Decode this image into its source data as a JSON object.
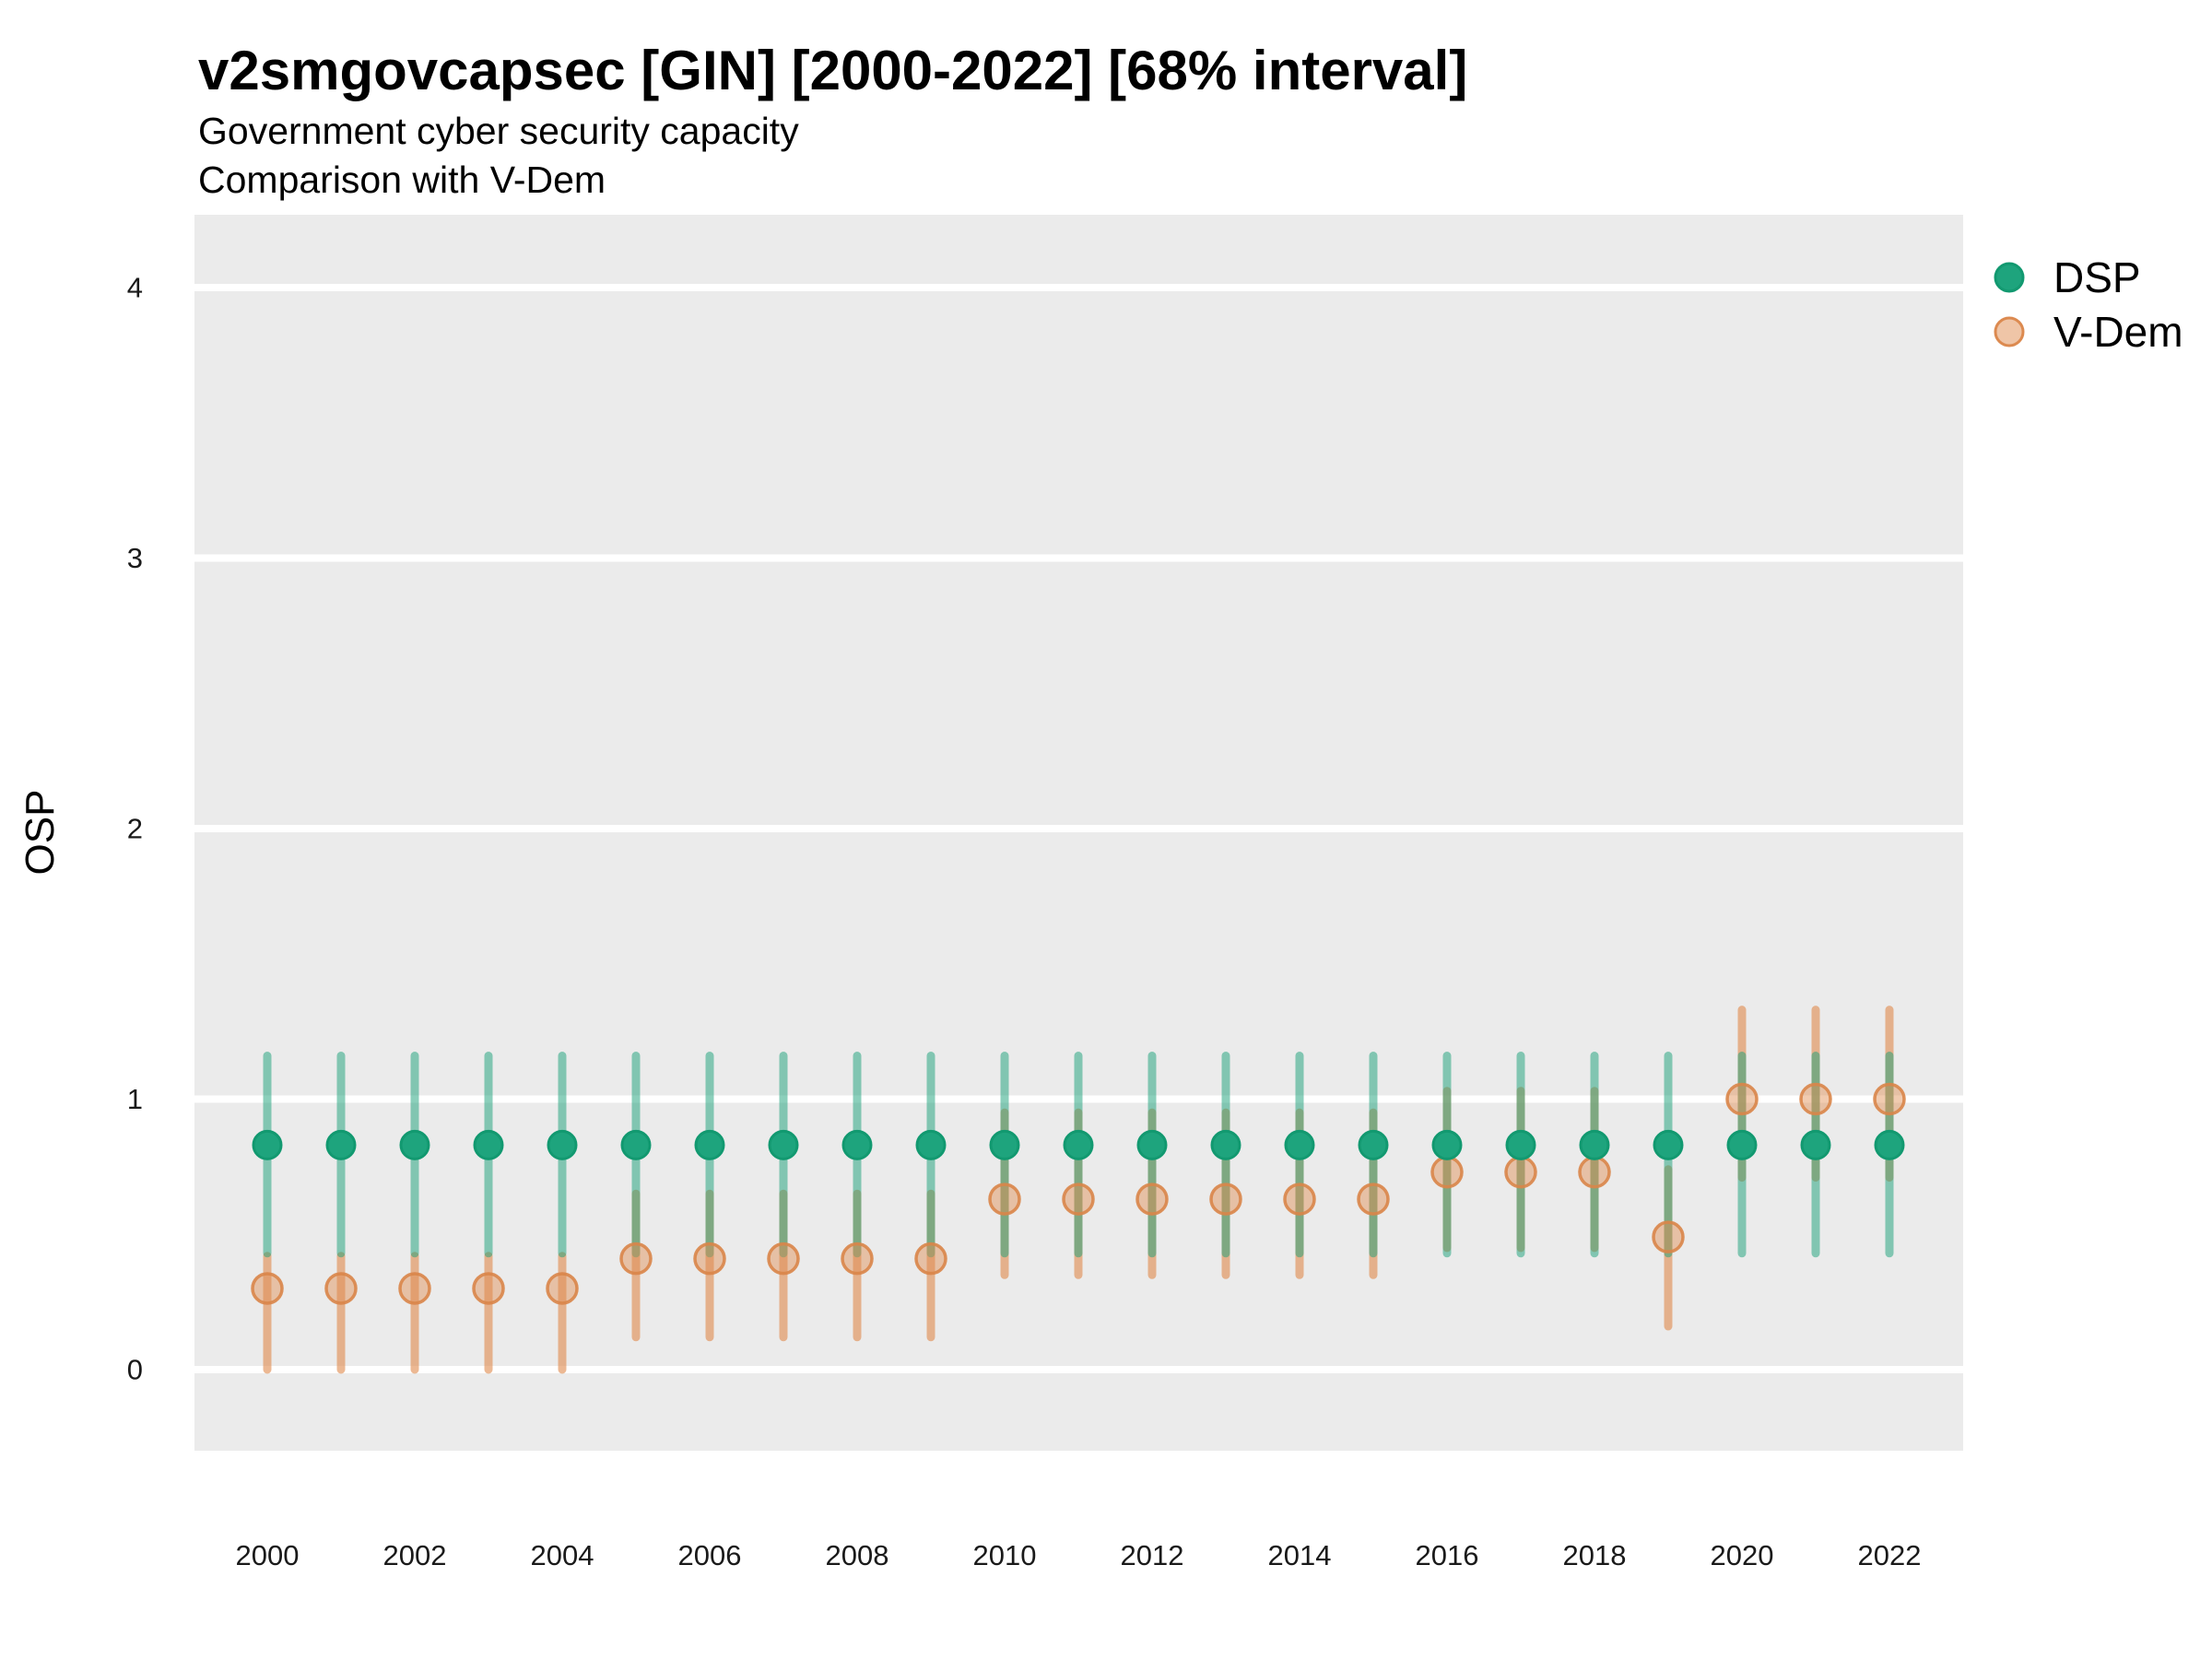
{
  "header": {
    "title": "v2smgovcapsec [GIN] [2000-2022] [68% interval]",
    "subtitle_line1": "Government cyber security capacity",
    "subtitle_line2": "Comparison with V-Dem"
  },
  "y_axis": {
    "label": "OSP",
    "ticks": [
      "0",
      "1",
      "2",
      "3",
      "4"
    ]
  },
  "x_axis": {
    "tick_labels": [
      "2000",
      "2002",
      "2004",
      "2006",
      "2008",
      "2010",
      "2012",
      "2014",
      "2016",
      "2018",
      "2020",
      "2022"
    ]
  },
  "legend": {
    "dsp_label": "DSP",
    "vdem_label": "V-Dem"
  },
  "colors": {
    "panel_background": "#EBEBEB",
    "gridline": "#FFFFFF",
    "dsp_point_fill": "#1EA47D",
    "dsp_point_stroke": "#129970",
    "dsp_bar": "rgba(24,160,120,0.5)",
    "vdem_point_fill": "rgba(224,140,80,0.45)",
    "vdem_point_stroke": "rgba(217,133,73,0.9)",
    "vdem_bar": "rgba(224,140,80,0.62)",
    "vdem_legend_fill": "rgba(224,140,80,0.5)",
    "vdem_legend_stroke": "#DC8A50"
  },
  "chart_data": {
    "type": "scatter",
    "subtype": "pointrange (point with 68% interval bars)",
    "title": "v2smgovcapsec [GIN] [2000-2022] [68% interval]",
    "subtitle": "Government cyber security capacity — Comparison with V-Dem",
    "xlabel": "",
    "ylabel": "OSP",
    "ylim": [
      -0.3,
      4.27
    ],
    "y_ticks": [
      0,
      1,
      2,
      3,
      4
    ],
    "x": [
      2000,
      2001,
      2002,
      2003,
      2004,
      2005,
      2006,
      2007,
      2008,
      2009,
      2010,
      2011,
      2012,
      2013,
      2014,
      2015,
      2016,
      2017,
      2018,
      2019,
      2020,
      2021,
      2022
    ],
    "grid": "horizontal major gridlines only, white on grey panel",
    "legend_position": "right-top",
    "interval": "68%",
    "series": [
      {
        "name": "DSP",
        "points": [
          0.83,
          0.83,
          0.83,
          0.83,
          0.83,
          0.83,
          0.83,
          0.83,
          0.83,
          0.83,
          0.83,
          0.83,
          0.83,
          0.83,
          0.83,
          0.83,
          0.83,
          0.83,
          0.83,
          0.83,
          0.83,
          0.83,
          0.83
        ],
        "lower": [
          0.43,
          0.43,
          0.43,
          0.43,
          0.43,
          0.43,
          0.43,
          0.43,
          0.43,
          0.43,
          0.43,
          0.43,
          0.43,
          0.43,
          0.43,
          0.43,
          0.43,
          0.43,
          0.43,
          0.43,
          0.43,
          0.43,
          0.43
        ],
        "upper": [
          1.16,
          1.16,
          1.16,
          1.16,
          1.16,
          1.16,
          1.16,
          1.16,
          1.16,
          1.16,
          1.16,
          1.16,
          1.16,
          1.16,
          1.16,
          1.16,
          1.16,
          1.16,
          1.16,
          1.16,
          1.16,
          1.16,
          1.16
        ]
      },
      {
        "name": "V-Dem",
        "points": [
          0.3,
          0.3,
          0.3,
          0.3,
          0.3,
          0.41,
          0.41,
          0.41,
          0.41,
          0.41,
          0.63,
          0.63,
          0.63,
          0.63,
          0.63,
          0.63,
          0.73,
          0.73,
          0.73,
          0.49,
          1.0,
          1.0,
          1.0
        ],
        "lower": [
          0.0,
          0.0,
          0.0,
          0.0,
          0.0,
          0.12,
          0.12,
          0.12,
          0.12,
          0.12,
          0.35,
          0.35,
          0.35,
          0.35,
          0.35,
          0.35,
          0.45,
          0.45,
          0.45,
          0.16,
          0.71,
          0.71,
          0.71
        ],
        "upper": [
          0.42,
          0.42,
          0.42,
          0.42,
          0.42,
          0.65,
          0.65,
          0.65,
          0.65,
          0.65,
          0.95,
          0.95,
          0.95,
          0.95,
          0.95,
          0.95,
          1.03,
          1.03,
          1.03,
          0.74,
          1.33,
          1.33,
          1.33
        ]
      }
    ]
  }
}
